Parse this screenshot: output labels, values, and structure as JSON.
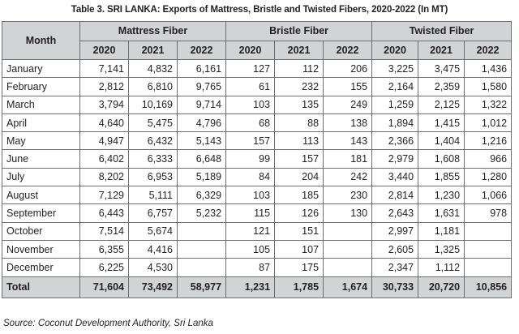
{
  "title": "Table 3. SRI LANKA: Exports of Mattress, Bristle and Twisted Fibers, 2020-2022 (In MT)",
  "header": {
    "month_label": "Month",
    "groups": [
      "Mattress Fiber",
      "Bristle Fiber",
      "Twisted Fiber"
    ],
    "years": [
      "2020",
      "2021",
      "2022"
    ]
  },
  "rows": [
    {
      "month": "January",
      "values": [
        "7,141",
        "4,832",
        "6,161",
        "127",
        "112",
        "206",
        "3,225",
        "3,475",
        "1,436"
      ]
    },
    {
      "month": "February",
      "values": [
        "2,812",
        "6,810",
        "9,765",
        "61",
        "232",
        "155",
        "2,164",
        "2,359",
        "1,580"
      ]
    },
    {
      "month": "March",
      "values": [
        "3,794",
        "10,169",
        "9,714",
        "103",
        "135",
        "249",
        "1,259",
        "2,125",
        "1,322"
      ]
    },
    {
      "month": "April",
      "values": [
        "4,640",
        "5,475",
        "4,796",
        "68",
        "88",
        "138",
        "1,894",
        "1,415",
        "1,012"
      ]
    },
    {
      "month": "May",
      "values": [
        "4,947",
        "6,432",
        "5,143",
        "157",
        "113",
        "143",
        "2,366",
        "1,404",
        "1,216"
      ]
    },
    {
      "month": "June",
      "values": [
        "6,402",
        "6,333",
        "6,648",
        "99",
        "157",
        "181",
        "2,979",
        "1,608",
        "966"
      ]
    },
    {
      "month": "July",
      "values": [
        "8,202",
        "6,953",
        "5,189",
        "84",
        "204",
        "242",
        "3,440",
        "1,855",
        "1,280"
      ]
    },
    {
      "month": "August",
      "values": [
        "7,129",
        "5,111",
        "6,329",
        "103",
        "185",
        "230",
        "2,814",
        "1,230",
        "1,066"
      ]
    },
    {
      "month": "September",
      "values": [
        "6,443",
        "6,757",
        "5,232",
        "115",
        "126",
        "130",
        "2,643",
        "1,631",
        "978"
      ]
    },
    {
      "month": "October",
      "values": [
        "7,514",
        "5,674",
        "",
        "121",
        "151",
        "",
        "2,997",
        "1,181",
        ""
      ]
    },
    {
      "month": "November",
      "values": [
        "6,355",
        "4,416",
        "",
        "105",
        "107",
        "",
        "2,605",
        "1,325",
        ""
      ]
    },
    {
      "month": "December",
      "values": [
        "6,225",
        "4,530",
        "",
        "87",
        "175",
        "",
        "2,347",
        "1,112",
        ""
      ]
    }
  ],
  "total": {
    "label": "Total",
    "values": [
      "71,604",
      "73,492",
      "58,977",
      "1,231",
      "1,785",
      "1,674",
      "30,733",
      "20,720",
      "10,856"
    ]
  },
  "source": "Source: Coconut Development Authority, Sri Lanka"
}
